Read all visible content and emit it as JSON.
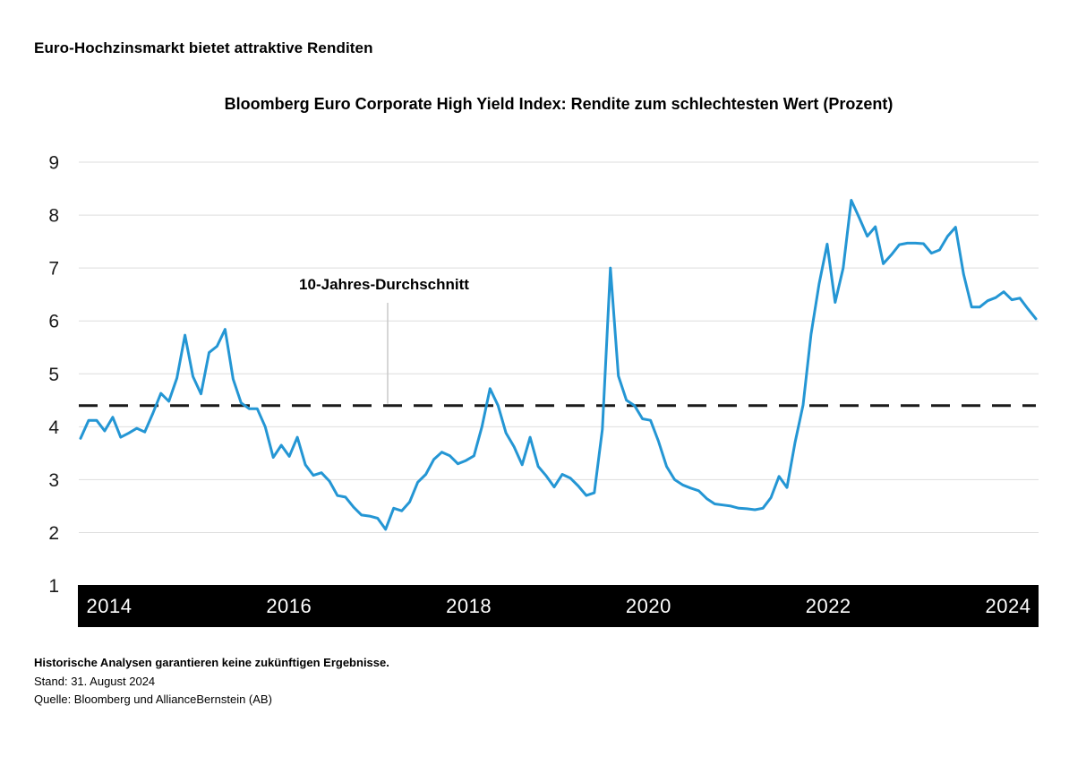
{
  "header": {
    "title": "Euro-Hochzinsmarkt bietet attraktive Renditen"
  },
  "footer": {
    "disclaimer": "Historische Analysen garantieren keine zukünftigen Ergebnisse.",
    "as_of": "Stand: 31. August 2024",
    "source": "Quelle: Bloomberg und AllianceBernstein (AB)"
  },
  "chart_data": {
    "type": "line",
    "title": "Bloomberg Euro Corporate High Yield Index: Rendite zum schlechtesten Wert (Prozent)",
    "ylabel": "",
    "xlabel": "",
    "unit": "Prozent",
    "ylim": [
      1,
      9
    ],
    "y_ticks": [
      9,
      8,
      7,
      6,
      5,
      4,
      3,
      2,
      1
    ],
    "x_tick_years": [
      2014,
      2016,
      2018,
      2020,
      2022,
      2024
    ],
    "grid": "horizontal",
    "x_axis_style": "black-bar",
    "frequency": "monthly",
    "x_start": "2014-09",
    "x_end": "2024-08",
    "series": [
      {
        "name": "Rendite zum schlechtesten Wert",
        "color": "#2496d4",
        "values": [
          3.78,
          4.12,
          4.12,
          3.92,
          4.18,
          3.8,
          3.88,
          3.97,
          3.9,
          4.25,
          4.63,
          4.48,
          4.92,
          5.73,
          4.95,
          4.62,
          5.4,
          5.52,
          5.84,
          4.9,
          4.45,
          4.34,
          4.34,
          4.0,
          3.42,
          3.65,
          3.44,
          3.8,
          3.28,
          3.08,
          3.13,
          2.97,
          2.7,
          2.67,
          2.48,
          2.33,
          2.31,
          2.27,
          2.06,
          2.46,
          2.41,
          2.58,
          2.95,
          3.1,
          3.38,
          3.52,
          3.45,
          3.3,
          3.36,
          3.45,
          4.0,
          4.72,
          4.4,
          3.88,
          3.62,
          3.28,
          3.8,
          3.25,
          3.07,
          2.86,
          3.1,
          3.03,
          2.88,
          2.7,
          2.75,
          3.95,
          7.0,
          4.96,
          4.5,
          4.4,
          4.15,
          4.12,
          3.72,
          3.25,
          3.0,
          2.9,
          2.84,
          2.79,
          2.64,
          2.54,
          2.52,
          2.5,
          2.46,
          2.45,
          2.43,
          2.46,
          2.66,
          3.06,
          2.85,
          3.7,
          4.41,
          5.75,
          6.7,
          7.45,
          6.35,
          7.0,
          8.28,
          7.95,
          7.6,
          7.78,
          7.08,
          7.25,
          7.44,
          7.47,
          7.47,
          7.46,
          7.28,
          7.34,
          7.6,
          7.77,
          6.88,
          6.26,
          6.26,
          6.38,
          6.44,
          6.55,
          6.4,
          6.43,
          6.23,
          6.04
        ]
      }
    ],
    "average_line": {
      "label": "10-Jahres-Durchschnitt",
      "value": 4.4,
      "style": "dashed",
      "color": "#1a1a1a"
    },
    "colors": {
      "line": "#2496d4",
      "grid": "#dedede",
      "axis_bar": "#000000",
      "axis_bar_text": "#ffffff",
      "tick_label": "#1a1a1a",
      "pointer": "#c8c8c8"
    }
  }
}
